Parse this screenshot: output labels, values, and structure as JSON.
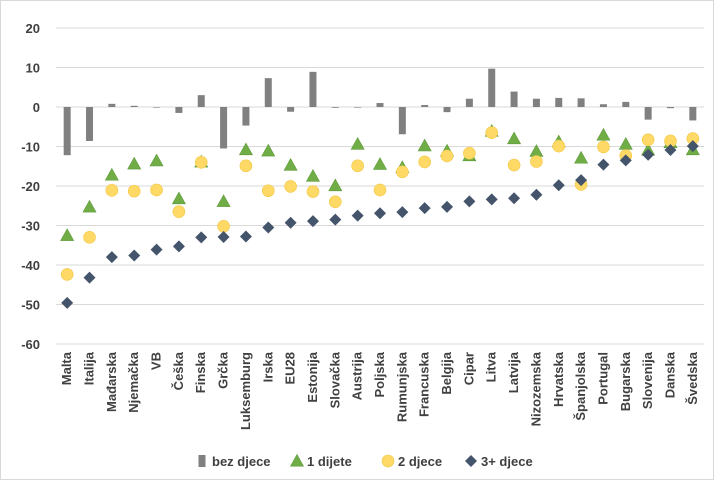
{
  "chart_data": {
    "type": "scatter",
    "categories": [
      "Malta",
      "Italija",
      "Mađarska",
      "Njemačka",
      "VB",
      "Češka",
      "Finska",
      "Grčka",
      "Luksemburg",
      "Irska",
      "EU28",
      "Estonija",
      "Slovačka",
      "Austrija",
      "Poljska",
      "Rumunjska",
      "Francuska",
      "Belgija",
      "Cipar",
      "Litva",
      "Latvija",
      "Nizozemska",
      "Hrvatska",
      "Španjolska",
      "Portugal",
      "Bugarska",
      "Slovenija",
      "Danska",
      "Švedska"
    ],
    "series": [
      {
        "name": "bez djece",
        "kind": "bar",
        "color": "#808080",
        "values": [
          -12.2,
          -8.6,
          0.8,
          0.3,
          0,
          -1.5,
          3,
          -10.5,
          -4.7,
          7.3,
          -1.2,
          8.9,
          -0.2,
          0,
          1,
          -6.9,
          0.5,
          -1.3,
          2.1,
          9.7,
          3.9,
          2.1,
          2.3,
          2.2,
          0.7,
          1.3,
          -3.2,
          -0.3,
          -3.4
        ]
      },
      {
        "name": "1 dijete",
        "kind": "triangle",
        "color": "#70ad47",
        "values": [
          -32.5,
          -25.3,
          -17.2,
          -14.4,
          -13.6,
          -23.2,
          -13.9,
          -23.9,
          -10.8,
          -11.1,
          -14.7,
          -17.5,
          -19.9,
          -9.4,
          -14.5,
          -15.3,
          -9.8,
          -11.1,
          -12.3,
          -6.1,
          -8.0,
          -11.2,
          -8.8,
          -12.9,
          -7.1,
          -9.4,
          -10.9,
          -9.0,
          -10.8
        ]
      },
      {
        "name": "2 djece",
        "kind": "circle",
        "color": "#ffd966",
        "values": [
          -42.4,
          -33.0,
          -21.1,
          -21.3,
          -21.0,
          -26.5,
          -14.0,
          -30.2,
          -14.9,
          -21.2,
          -20.1,
          -21.4,
          -24.0,
          -14.9,
          -21.0,
          -16.4,
          -13.9,
          -12.4,
          -11.7,
          -6.5,
          -14.7,
          -13.8,
          -9.9,
          -19.6,
          -10.1,
          -12.3,
          -8.3,
          -8.6,
          -8.0
        ]
      },
      {
        "name": "3+ djece",
        "kind": "diamond",
        "color": "#44546a",
        "values": [
          -49.6,
          -43.2,
          -38.0,
          -37.6,
          -36.1,
          -35.3,
          -33.0,
          -32.9,
          -32.8,
          -30.5,
          -29.3,
          -28.9,
          -28.5,
          -27.5,
          -26.9,
          -26.6,
          -25.6,
          -25.3,
          -23.9,
          -23.4,
          -23.1,
          -22.2,
          -19.8,
          -18.5,
          -14.6,
          -13.5,
          -12.1,
          -10.9,
          -9.9
        ]
      }
    ],
    "ylim": [
      -60,
      20
    ],
    "yticks": [
      20,
      10,
      0,
      -10,
      -20,
      -30,
      -40,
      -50,
      -60
    ],
    "grid": true,
    "legend_position": "bottom",
    "xlabel": "",
    "ylabel": ""
  }
}
